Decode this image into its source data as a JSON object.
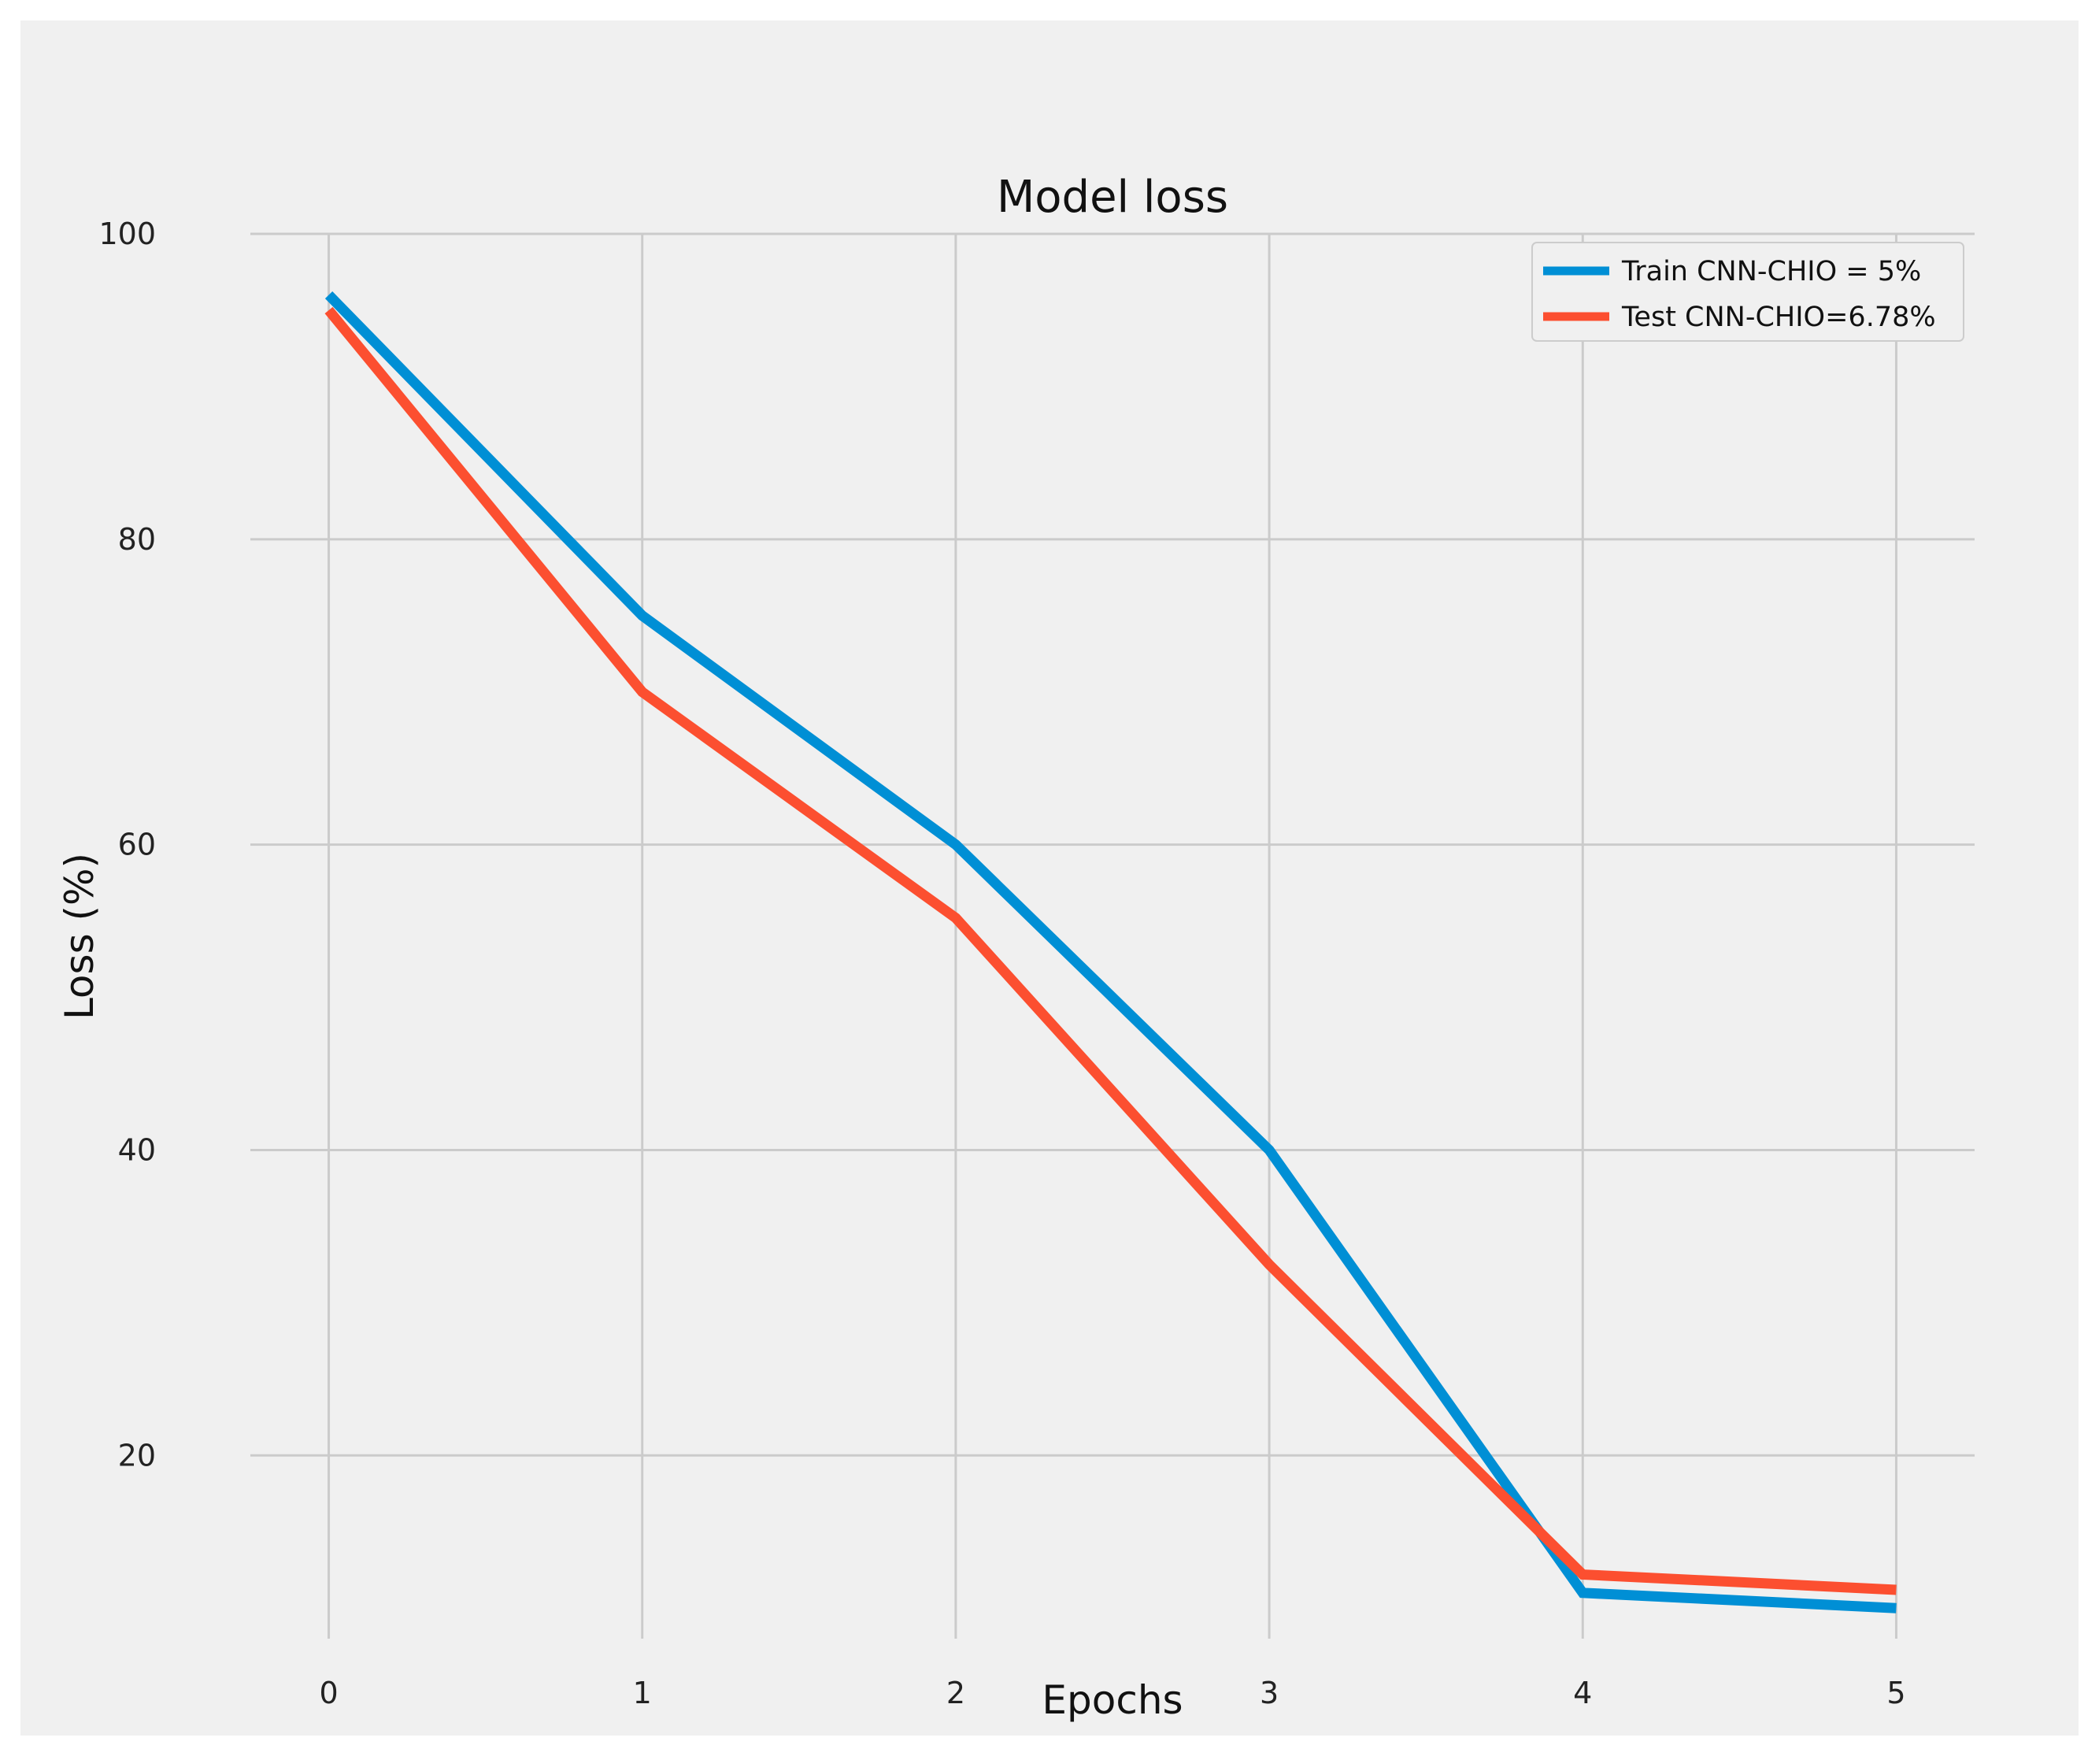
{
  "chart_data": {
    "type": "line",
    "title": "Model loss",
    "xlabel": "Epochs",
    "ylabel": "Loss (%)",
    "x": [
      0,
      1,
      2,
      3,
      4,
      5
    ],
    "xticks": [
      "0",
      "1",
      "2",
      "3",
      "4",
      "5"
    ],
    "yticks": [
      "20",
      "40",
      "60",
      "80",
      "100"
    ],
    "xlim": [
      -0.25,
      5.25
    ],
    "ylim": [
      8,
      100
    ],
    "grid": true,
    "legend_position": "top-right",
    "series": [
      {
        "name": "Train CNN-CHIO = 5%",
        "color": "#008fd5",
        "values": [
          96,
          75,
          60,
          40,
          11,
          10
        ]
      },
      {
        "name": "Test CNN-CHIO=6.78%",
        "color": "#fc4f30",
        "values": [
          95,
          70,
          55.2,
          32.5,
          12.2,
          11.2
        ]
      }
    ]
  }
}
